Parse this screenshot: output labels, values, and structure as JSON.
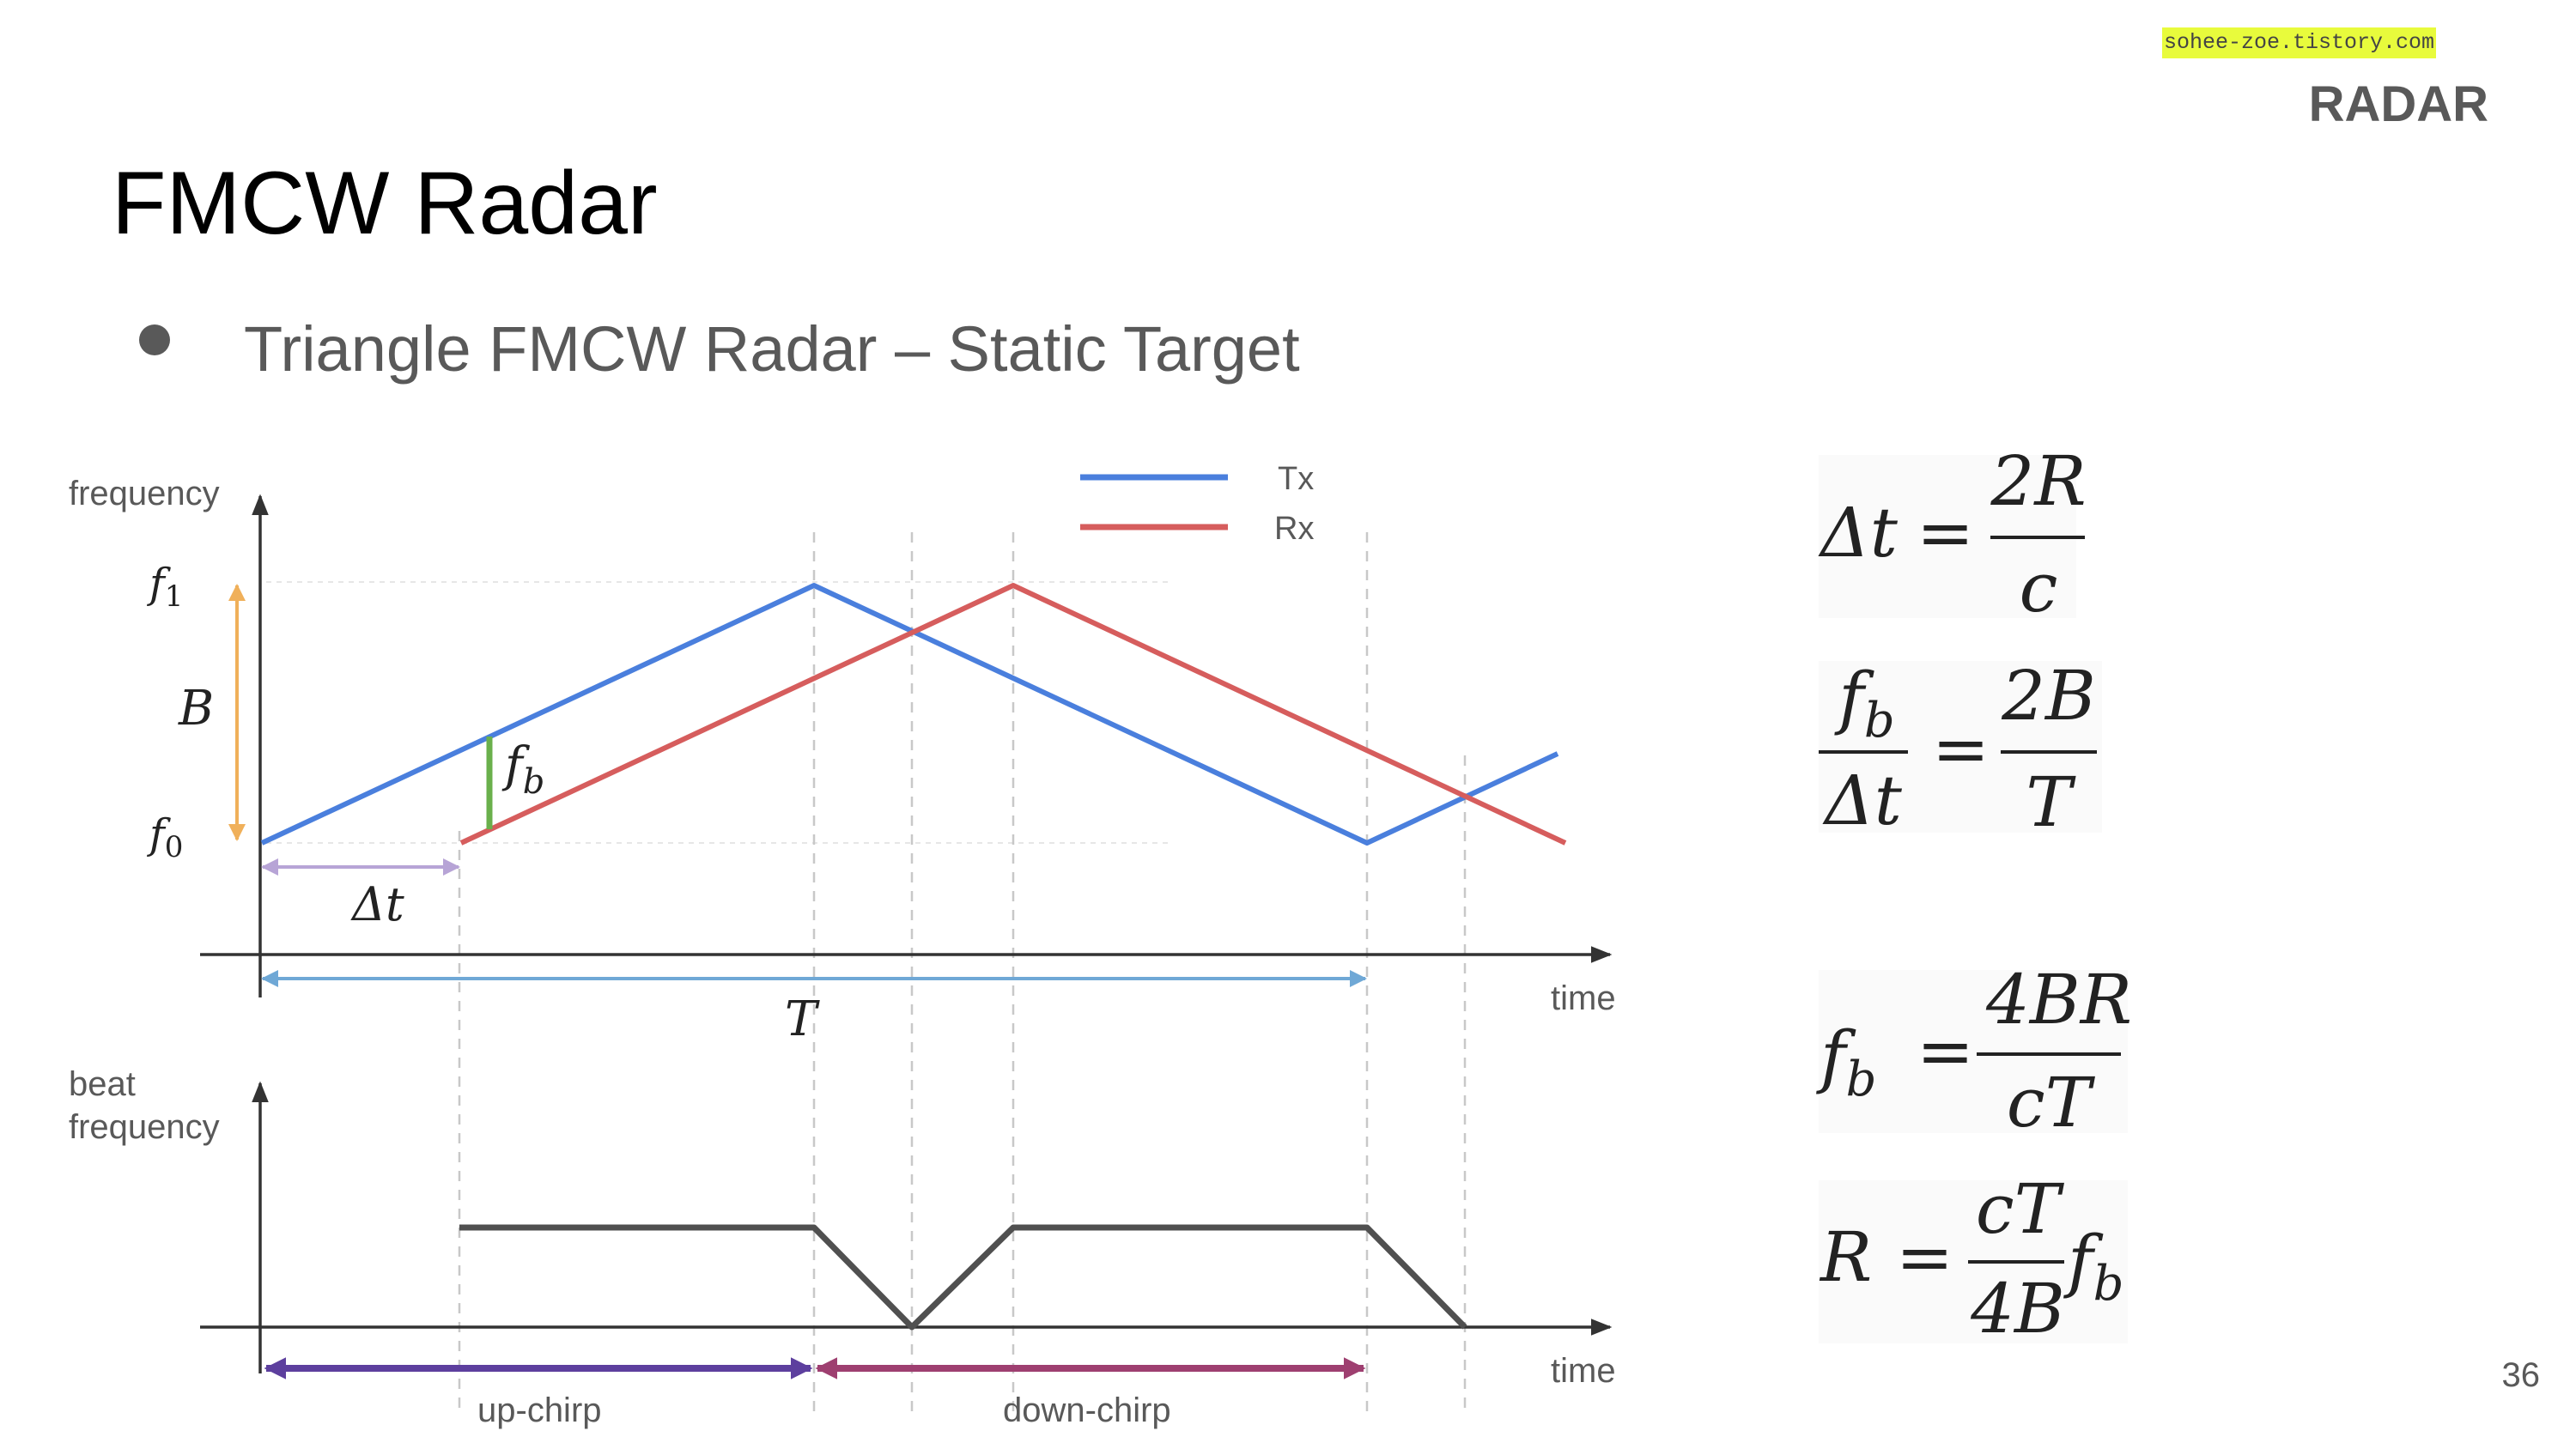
{
  "source_label": "sohee-zoe.tistory.com",
  "section_label": "RADAR",
  "title": "FMCW Radar",
  "bullet": "Triangle FMCW Radar – Static Target",
  "page_number": "36",
  "colors": {
    "tx": "#4a7fdd",
    "rx": "#d65d5d",
    "beat": "#505050",
    "bandwidth": "#f0b05a",
    "delay": "#b7a4d6",
    "period": "#6fa8d6",
    "fb_marker": "#6ab04c",
    "upchirp": "#5d3f9e",
    "downchirp": "#9e3f70"
  },
  "top_plot": {
    "ylabel": "frequency",
    "xlabel": "time",
    "f1": "f",
    "f1_sub": "1",
    "f0": "f",
    "f0_sub": "0",
    "bandwidth": "B",
    "fb": "f",
    "fb_sub": "b",
    "delta_t": "Δt",
    "period": "T",
    "legend": [
      {
        "name": "Tx"
      },
      {
        "name": "Rx"
      }
    ]
  },
  "bottom_plot": {
    "ylabel_line1": "beat",
    "ylabel_line2": "frequency",
    "xlabel": "time",
    "phase_up": "up-chirp",
    "phase_down": "down-chirp"
  },
  "equations": {
    "eq1": {
      "lhs": "Δt",
      "num": "2R",
      "den": "c"
    },
    "eq2": {
      "lhs_num": "f",
      "lhs_num_sub": "b",
      "lhs_den": "Δt",
      "num": "2B",
      "den": "T"
    },
    "eq3": {
      "lhs": "f",
      "lhs_sub": "b",
      "num": "4BR",
      "den": "cT"
    },
    "eq4": {
      "lhs": "R",
      "num": "cT",
      "den": "4B",
      "tail": "f",
      "tail_sub": "b"
    }
  }
}
